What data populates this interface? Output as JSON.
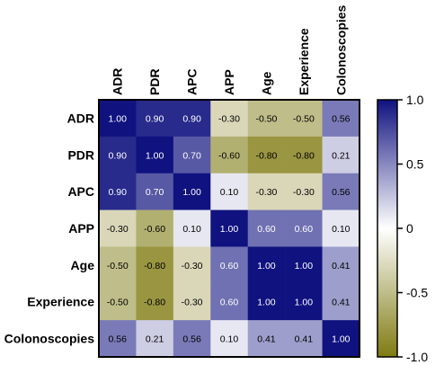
{
  "chart_data": {
    "type": "heatmap",
    "title": "",
    "row_labels": [
      "ADR",
      "PDR",
      "APC",
      "APP",
      "Age",
      "Experience",
      "Colonoscopies"
    ],
    "col_labels": [
      "ADR",
      "PDR",
      "APC",
      "APP",
      "Age",
      "Experience",
      "Colonoscopies"
    ],
    "values": [
      [
        1.0,
        0.9,
        0.9,
        -0.3,
        -0.5,
        -0.5,
        0.56
      ],
      [
        0.9,
        1.0,
        0.7,
        -0.6,
        -0.8,
        -0.8,
        0.21
      ],
      [
        0.9,
        0.7,
        1.0,
        0.1,
        -0.3,
        -0.3,
        0.56
      ],
      [
        -0.3,
        -0.6,
        0.1,
        1.0,
        0.6,
        0.6,
        0.1
      ],
      [
        -0.5,
        -0.8,
        -0.3,
        0.6,
        1.0,
        1.0,
        0.41
      ],
      [
        -0.5,
        -0.8,
        -0.3,
        0.6,
        1.0,
        1.0,
        0.41
      ],
      [
        0.56,
        0.21,
        0.56,
        0.1,
        0.41,
        0.41,
        1.0
      ]
    ],
    "value_labels": [
      [
        "1.00",
        "0.90",
        "0.90",
        "-0.30",
        "-0.50",
        "-0.50",
        "0.56"
      ],
      [
        "0.90",
        "1.00",
        "0.70",
        "-0.60",
        "-0.80",
        "-0.80",
        "0.21"
      ],
      [
        "0.90",
        "0.70",
        "1.00",
        "0.10",
        "-0.30",
        "-0.30",
        "0.56"
      ],
      [
        "-0.30",
        "-0.60",
        "0.10",
        "1.00",
        "0.60",
        "0.60",
        "0.10"
      ],
      [
        "-0.50",
        "-0.80",
        "-0.30",
        "0.60",
        "1.00",
        "1.00",
        "0.41"
      ],
      [
        "-0.50",
        "-0.80",
        "-0.30",
        "0.60",
        "1.00",
        "1.00",
        "0.41"
      ],
      [
        "0.56",
        "0.21",
        "0.56",
        "0.10",
        "0.41",
        "0.41",
        "1.00"
      ]
    ],
    "colorbar": {
      "range": [
        -1.0,
        1.0
      ],
      "ticks": [
        1.0,
        0.5,
        0,
        -0.5,
        -1.0
      ],
      "tick_labels": [
        "1.0",
        "0.5",
        "0",
        "-0.5",
        "-1.0"
      ],
      "colors": {
        "low": "#7f7b12",
        "mid": "#ffffff",
        "high": "#10127f"
      }
    }
  }
}
